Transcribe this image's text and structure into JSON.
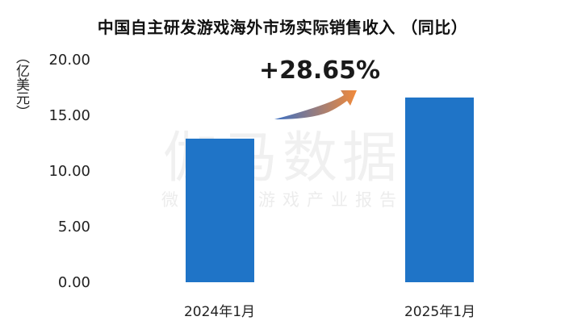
{
  "chart_data": {
    "type": "bar",
    "title": "中国自主研发游戏海外市场实际销售收入 （同比）",
    "ylabel": "（亿美元）",
    "categories": [
      "2024年1月",
      "2025年1月"
    ],
    "values": [
      12.95,
      16.66
    ],
    "ylim": [
      0,
      20
    ],
    "yticks": [
      "20.00",
      "15.00",
      "10.00",
      "5.00",
      "0.00"
    ],
    "annotation": "+28.65%",
    "bar_color": "#1f74c7",
    "arrow_gradient": [
      "#3a6fc4",
      "#f28a3a"
    ]
  },
  "watermark": {
    "main": "伽马数据",
    "sub": "微信号：游戏产业报告"
  }
}
